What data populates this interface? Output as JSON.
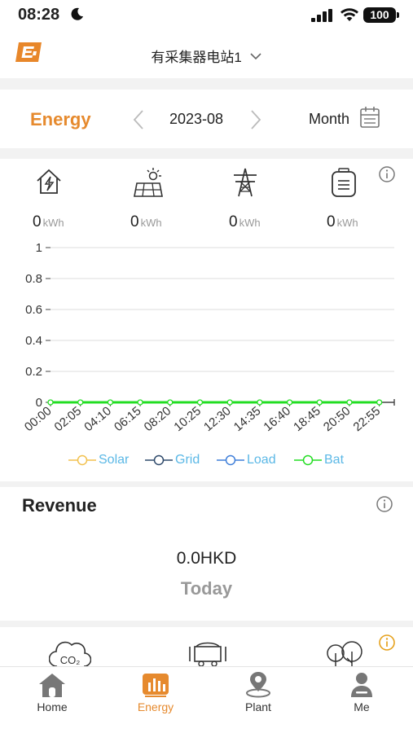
{
  "status_bar": {
    "time": "08:28",
    "battery": "100"
  },
  "header": {
    "station_name": "有采集器电站1"
  },
  "energy_bar": {
    "title": "Energy",
    "date": "2023-08",
    "period": "Month"
  },
  "metrics": [
    {
      "icon": "home-energy-icon",
      "value": "0",
      "unit": "kWh"
    },
    {
      "icon": "solar-panel-icon",
      "value": "0",
      "unit": "kWh"
    },
    {
      "icon": "power-tower-icon",
      "value": "0",
      "unit": "kWh"
    },
    {
      "icon": "battery-icon",
      "value": "0",
      "unit": "kWh"
    }
  ],
  "chart_data": {
    "type": "line",
    "x": [
      "00:00",
      "02:05",
      "04:10",
      "06:15",
      "08:20",
      "10:25",
      "12:30",
      "14:35",
      "16:40",
      "18:45",
      "20:50",
      "22:55"
    ],
    "ylim": [
      0,
      1
    ],
    "yticks": [
      "1",
      "0.8",
      "0.6",
      "0.4",
      "0.2",
      "0"
    ],
    "grid": true,
    "legend_position": "bottom",
    "series": [
      {
        "name": "Solar",
        "color": "#f2c14e",
        "values": [
          0,
          0,
          0,
          0,
          0,
          0,
          0,
          0,
          0,
          0,
          0,
          0
        ]
      },
      {
        "name": "Grid",
        "color": "#2f4a6b",
        "values": [
          0,
          0,
          0,
          0,
          0,
          0,
          0,
          0,
          0,
          0,
          0,
          0
        ]
      },
      {
        "name": "Load",
        "color": "#3f7fd9",
        "values": [
          0,
          0,
          0,
          0,
          0,
          0,
          0,
          0,
          0,
          0,
          0,
          0
        ]
      },
      {
        "name": "Bat",
        "color": "#22dd22",
        "values": [
          0,
          0,
          0,
          0,
          0,
          0,
          0,
          0,
          0,
          0,
          0,
          0
        ]
      }
    ]
  },
  "revenue": {
    "title": "Revenue",
    "amount": "0.0HKD",
    "period": "Today"
  },
  "environment": {
    "co2_text": "CO₂"
  },
  "tabbar": {
    "active_color": "#e68a2e",
    "tabs": [
      {
        "label": "Home",
        "icon": "home-icon"
      },
      {
        "label": "Energy",
        "icon": "energy-chart-icon"
      },
      {
        "label": "Plant",
        "icon": "location-pin-icon"
      },
      {
        "label": "Me",
        "icon": "person-icon"
      }
    ]
  }
}
